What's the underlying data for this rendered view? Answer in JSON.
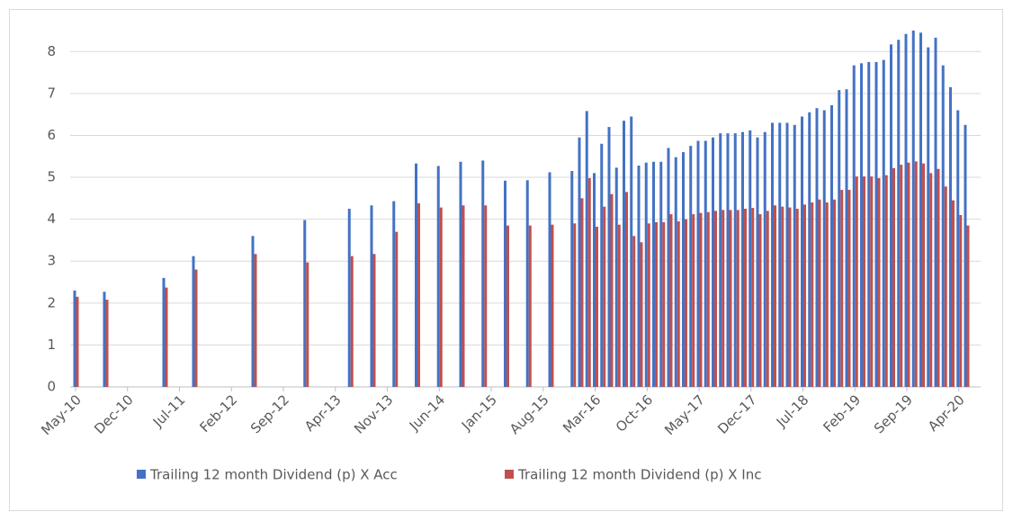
{
  "chart_data": {
    "type": "bar",
    "categories": [
      "May-10",
      null,
      null,
      null,
      null,
      null,
      null,
      "Dec-10",
      null,
      null,
      null,
      null,
      null,
      null,
      "Jul-11",
      null,
      null,
      null,
      null,
      null,
      null,
      "Feb-12",
      null,
      null,
      null,
      null,
      null,
      null,
      "Sep-12",
      null,
      null,
      null,
      null,
      null,
      null,
      "Apr-13",
      null,
      null,
      null,
      null,
      null,
      null,
      "Nov-13",
      null,
      null,
      null,
      null,
      null,
      null,
      "Jun-14",
      null,
      null,
      null,
      null,
      null,
      null,
      "Jan-15",
      null,
      null,
      null,
      null,
      null,
      null,
      "Aug-15",
      null,
      null,
      null,
      null,
      null,
      null,
      "Mar-16",
      null,
      null,
      null,
      null,
      null,
      null,
      "Oct-16",
      null,
      null,
      null,
      null,
      null,
      null,
      "May-17",
      null,
      null,
      null,
      null,
      null,
      null,
      "Dec-17",
      null,
      null,
      null,
      null,
      null,
      null,
      "Jul-18",
      null,
      null,
      null,
      null,
      null,
      null,
      "Feb-19",
      null,
      null,
      null,
      null,
      null,
      null,
      "Sep-19",
      null,
      null,
      null,
      null,
      null,
      null,
      "Apr-20",
      null
    ],
    "series": [
      {
        "name": "Trailing 12 month Dividend (p) X Acc",
        "color": "#4472c4",
        "values": [
          2.3,
          null,
          null,
          null,
          2.27,
          null,
          null,
          null,
          null,
          null,
          null,
          null,
          2.6,
          null,
          null,
          null,
          3.12,
          null,
          null,
          null,
          null,
          null,
          null,
          null,
          3.6,
          null,
          null,
          null,
          null,
          null,
          null,
          3.98,
          null,
          null,
          null,
          null,
          null,
          4.25,
          null,
          null,
          4.33,
          null,
          null,
          4.43,
          null,
          null,
          5.33,
          null,
          null,
          5.27,
          null,
          null,
          5.37,
          null,
          null,
          5.4,
          null,
          null,
          4.92,
          null,
          null,
          4.93,
          null,
          null,
          5.12,
          null,
          null,
          5.15,
          5.95,
          6.58,
          5.1,
          5.8,
          6.2,
          5.23,
          6.35,
          6.45,
          5.28,
          5.35,
          5.37,
          5.37,
          5.7,
          5.48,
          5.6,
          5.75,
          5.87,
          5.87,
          5.95,
          6.05,
          6.05,
          6.05,
          6.08,
          6.12,
          5.95,
          6.08,
          6.3,
          6.3,
          6.3,
          6.25,
          6.45,
          6.55,
          6.65,
          6.6,
          6.72,
          7.08,
          7.1,
          7.67,
          7.72,
          7.75,
          7.75,
          7.8,
          8.17,
          8.28,
          8.42,
          8.5,
          8.45,
          8.1,
          8.33,
          7.67,
          7.15,
          6.6,
          6.25
        ]
      },
      {
        "name": "Trailing 12 month Dividend (p) X Inc",
        "color": "#c0504d",
        "values": [
          2.15,
          null,
          null,
          null,
          2.08,
          null,
          null,
          null,
          null,
          null,
          null,
          null,
          2.37,
          null,
          null,
          null,
          2.8,
          null,
          null,
          null,
          null,
          null,
          null,
          null,
          3.17,
          null,
          null,
          null,
          null,
          null,
          null,
          2.97,
          null,
          null,
          null,
          null,
          null,
          3.12,
          null,
          null,
          3.17,
          null,
          null,
          3.7,
          null,
          null,
          4.38,
          null,
          null,
          4.28,
          null,
          null,
          4.33,
          null,
          null,
          4.33,
          null,
          null,
          3.85,
          null,
          null,
          3.85,
          null,
          null,
          3.87,
          null,
          null,
          3.9,
          4.5,
          4.98,
          3.82,
          4.3,
          4.6,
          3.87,
          4.65,
          3.6,
          3.45,
          3.9,
          3.93,
          3.93,
          4.12,
          3.95,
          4.0,
          4.12,
          4.15,
          4.17,
          4.2,
          4.22,
          4.22,
          4.22,
          4.25,
          4.27,
          4.12,
          4.2,
          4.33,
          4.3,
          4.28,
          4.25,
          4.35,
          4.4,
          4.47,
          4.4,
          4.47,
          4.7,
          4.7,
          5.02,
          5.02,
          5.02,
          4.98,
          5.05,
          5.22,
          5.3,
          5.35,
          5.38,
          5.33,
          5.1,
          5.2,
          4.78,
          4.45,
          4.1,
          3.85
        ]
      }
    ],
    "ylim": [
      0,
      8.8
    ],
    "yticks": [
      0,
      1,
      2,
      3,
      4,
      5,
      6,
      7,
      8
    ],
    "grid": true,
    "legend": "bottom"
  }
}
